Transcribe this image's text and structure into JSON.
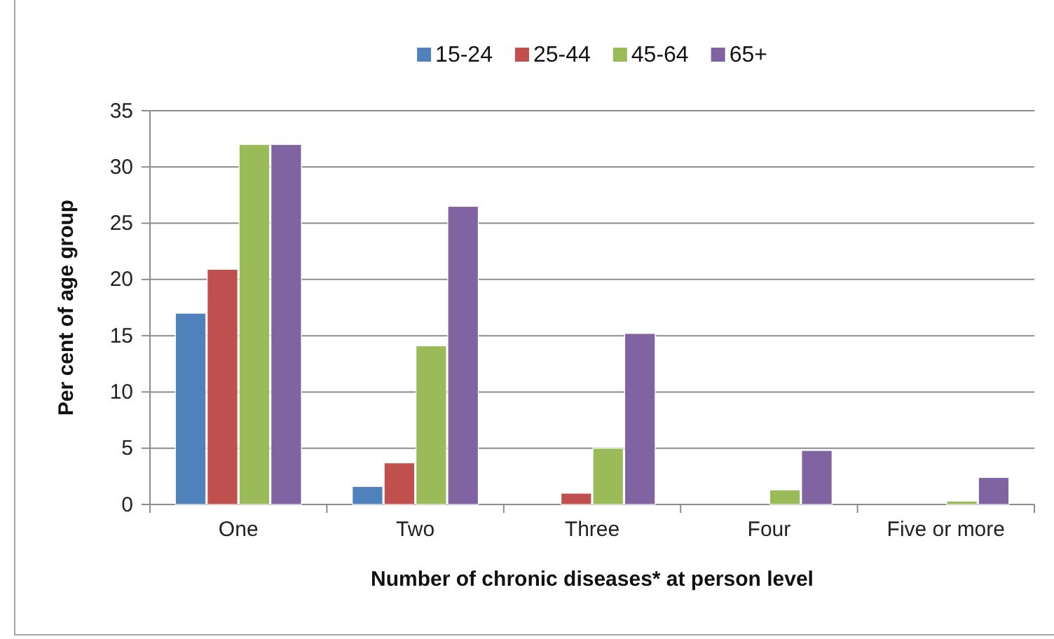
{
  "chart_data": {
    "type": "bar",
    "xlabel": "Number of chronic diseases* at person level",
    "ylabel": "Per cent of age group",
    "categories": [
      "One",
      "Two",
      "Three",
      "Four",
      "Five or more"
    ],
    "series": [
      {
        "name": "15-24",
        "color": "#4f81bd",
        "values": [
          17.0,
          1.6,
          0,
          0,
          0
        ]
      },
      {
        "name": "25-44",
        "color": "#c0504d",
        "values": [
          20.9,
          3.7,
          1.0,
          0,
          0
        ]
      },
      {
        "name": "45-64",
        "color": "#9bbb59",
        "values": [
          32.0,
          14.1,
          5.0,
          1.3,
          0.3
        ]
      },
      {
        "name": "65+",
        "color": "#8064a2",
        "values": [
          32.0,
          26.5,
          15.2,
          4.8,
          2.4
        ]
      }
    ],
    "ylim": [
      0,
      35
    ],
    "yticks": [
      0,
      5,
      10,
      15,
      20,
      25,
      30,
      35
    ],
    "grid": "y",
    "legend": "top"
  }
}
